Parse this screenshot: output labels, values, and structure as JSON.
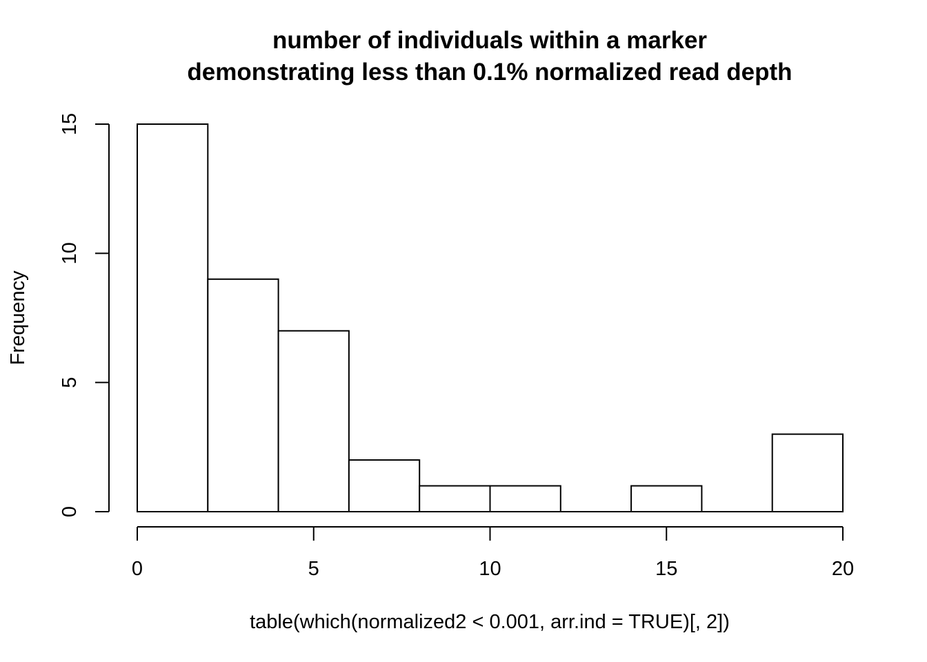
{
  "chart_data": {
    "type": "bar",
    "title_lines": [
      "number of individuals within a marker",
      "demonstrating less than 0.1% normalized read depth"
    ],
    "xlabel": "table(which(normalized2 < 0.001, arr.ind = TRUE)[, 2])",
    "ylabel": "Frequency",
    "bins": [
      {
        "x0": 0,
        "x1": 2,
        "count": 15
      },
      {
        "x0": 2,
        "x1": 4,
        "count": 9
      },
      {
        "x0": 4,
        "x1": 6,
        "count": 7
      },
      {
        "x0": 6,
        "x1": 8,
        "count": 2
      },
      {
        "x0": 8,
        "x1": 10,
        "count": 1
      },
      {
        "x0": 10,
        "x1": 12,
        "count": 1
      },
      {
        "x0": 12,
        "x1": 14,
        "count": 0
      },
      {
        "x0": 14,
        "x1": 16,
        "count": 1
      },
      {
        "x0": 16,
        "x1": 18,
        "count": 0
      },
      {
        "x0": 18,
        "x1": 20,
        "count": 3
      }
    ],
    "xlim": [
      0,
      20
    ],
    "ylim": [
      0,
      15
    ],
    "x_ticks": [
      0,
      5,
      10,
      15,
      20
    ],
    "x_tick_labels": [
      "0",
      "5",
      "10",
      "15",
      "20"
    ],
    "y_ticks": [
      0,
      5,
      10,
      15
    ],
    "y_tick_labels": [
      "0",
      "5",
      "10",
      "15"
    ],
    "grid": false,
    "legend": "none",
    "bar_fill": "#ffffff",
    "bar_stroke": "#000000"
  }
}
